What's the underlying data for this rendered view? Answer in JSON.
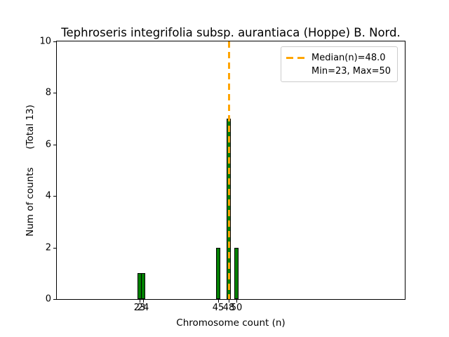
{
  "chart_data": {
    "type": "bar",
    "title": "Tephroseris integrifolia subsp. aurantiaca (Hoppe) B. Nord.",
    "xlabel": "Chromosome count (n)",
    "ylabel": "Num of counts      (Total 13)",
    "total_counts": 13,
    "x": [
      23,
      24,
      45,
      48,
      50
    ],
    "counts": [
      1,
      1,
      2,
      7,
      2
    ],
    "xticks": [
      23,
      24,
      45,
      48,
      50
    ],
    "yticks": [
      0,
      2,
      4,
      6,
      8,
      10
    ],
    "xlim": [
      0,
      97
    ],
    "ylim": [
      0,
      10
    ],
    "median_n": 48.0,
    "min_n": 23,
    "max_n": 50,
    "bar_width_units": 1.1,
    "grid": false,
    "legend_position": "upper right",
    "colors": {
      "bar_fill": "#008000",
      "bar_edge": "#000000",
      "median_line": "#FFA500",
      "legend_border": "#cccccc",
      "text": "#000000",
      "background": "#ffffff"
    },
    "legend": {
      "entries": [
        {
          "label": "Median(n)=48.0",
          "handle": "orange-dashed-line"
        },
        {
          "label": "Min=23, Max=50",
          "handle": "none"
        }
      ]
    }
  }
}
